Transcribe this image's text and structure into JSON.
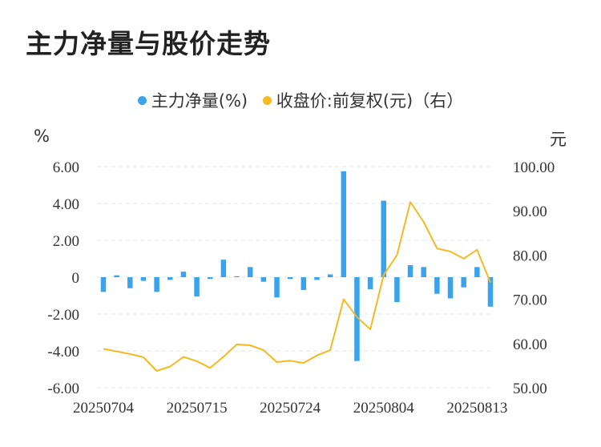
{
  "title": "主力净量与股价走势",
  "legend": {
    "series1": {
      "label": "主力净量(%)",
      "color": "#3ba3ec"
    },
    "series2": {
      "label": "收盘价:前复权(元)（右）",
      "color": "#f5b922"
    }
  },
  "axis": {
    "left_unit": "%",
    "right_unit": "元"
  },
  "chart_data": {
    "type": "bar",
    "title": "主力净量与股价走势",
    "x_tick_labels": [
      "20250704",
      "20250715",
      "20250724",
      "20250804",
      "20250813"
    ],
    "x_tick_index": [
      0,
      7,
      14,
      21,
      28
    ],
    "y_left": {
      "label": "%",
      "min": -6,
      "max": 6,
      "ticks": [
        6,
        4,
        2,
        0,
        -2,
        -4,
        -6
      ],
      "tick_labels": [
        "6.00",
        "4.00",
        "2.00",
        "0",
        "-2.00",
        "-4.00",
        "-6.00"
      ]
    },
    "y_right": {
      "label": "元",
      "min": 50,
      "max": 100,
      "ticks": [
        100,
        90,
        80,
        70,
        60,
        50
      ],
      "tick_labels": [
        "100.00",
        "90.00",
        "80.00",
        "70.00",
        "60.00",
        "50.00"
      ]
    },
    "grid": true,
    "legend_position": "top-center",
    "series": [
      {
        "name": "主力净量(%)",
        "type": "bar",
        "axis": "left",
        "color": "#3ba3ec",
        "values": [
          -0.8,
          0.1,
          -0.6,
          -0.2,
          -0.8,
          -0.15,
          0.3,
          -1.05,
          -0.1,
          0.95,
          0.05,
          0.55,
          -0.25,
          -1.1,
          -0.1,
          -0.7,
          -0.15,
          0.15,
          5.75,
          -4.55,
          -0.65,
          4.15,
          -1.35,
          0.65,
          0.55,
          -0.9,
          -1.15,
          -0.55,
          0.55,
          -1.6
        ]
      },
      {
        "name": "收盘价:前复权(元)（右）",
        "type": "line",
        "axis": "right",
        "color": "#f5b922",
        "values": [
          58.8,
          58.2,
          57.6,
          56.9,
          53.8,
          54.8,
          57.0,
          56.0,
          54.5,
          57.0,
          59.8,
          59.6,
          58.5,
          55.8,
          56.1,
          55.6,
          57.3,
          58.5,
          70.0,
          66.0,
          63.2,
          75.5,
          80.0,
          92.0,
          87.5,
          81.5,
          80.8,
          79.2,
          81.2,
          73.8
        ]
      }
    ]
  }
}
